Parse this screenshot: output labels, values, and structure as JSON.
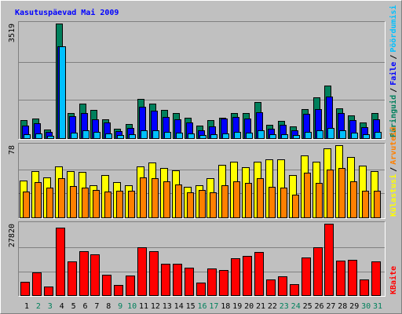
{
  "title": "Kasutuspäevad Mai 2009",
  "chart_data": [
    {
      "type": "bar",
      "ylim": [
        0,
        3519
      ],
      "yticks": [
        3519
      ],
      "legend_separator": "/",
      "series": [
        {
          "name": "Päringuid",
          "color": "#00805c",
          "values": [
            555,
            600,
            265,
            3519,
            770,
            1060,
            870,
            580,
            290,
            435,
            1205,
            1060,
            870,
            770,
            625,
            385,
            555,
            625,
            770,
            770,
            1110,
            410,
            530,
            360,
            890,
            1255,
            1615,
            915,
            700,
            480,
            770
          ]
        },
        {
          "name": "Faile",
          "color": "#0000ff",
          "values": [
            385,
            460,
            195,
            2820,
            675,
            770,
            580,
            480,
            215,
            315,
            965,
            845,
            650,
            580,
            480,
            240,
            360,
            600,
            650,
            600,
            795,
            290,
            410,
            240,
            745,
            890,
            1280,
            770,
            555,
            340,
            580
          ]
        },
        {
          "name": "Pöördumisi",
          "color": "#00c0ff",
          "values": [
            120,
            145,
            70,
            2830,
            170,
            240,
            190,
            145,
            95,
            120,
            240,
            240,
            190,
            170,
            145,
            95,
            120,
            145,
            190,
            170,
            240,
            120,
            120,
            95,
            190,
            240,
            315,
            240,
            170,
            120,
            190
          ]
        }
      ]
    },
    {
      "type": "bar",
      "ylim": [
        0,
        78
      ],
      "yticks": [
        78
      ],
      "legend_separator": "/",
      "series": [
        {
          "name": "Külastusi",
          "color": "#ffff00",
          "values": [
            40,
            50,
            43,
            55,
            50,
            49,
            35,
            46,
            38,
            35,
            55,
            59,
            53,
            51,
            33,
            35,
            42,
            57,
            60,
            54,
            60,
            63,
            63,
            46,
            67,
            60,
            75,
            78,
            65,
            56,
            50
          ]
        },
        {
          "name": "Arvuteid",
          "color": "#ff8000",
          "values": [
            28,
            38,
            32,
            42,
            34,
            32,
            30,
            28,
            29,
            29,
            43,
            42,
            39,
            36,
            27,
            30,
            27,
            35,
            39,
            37,
            42,
            33,
            32,
            25,
            48,
            37,
            52,
            53,
            39,
            29,
            29
          ]
        }
      ]
    },
    {
      "type": "bar",
      "ylim": [
        0,
        27820
      ],
      "yticks": [
        27820
      ],
      "categories": [
        "1",
        "2",
        "3",
        "4",
        "5",
        "6",
        "7",
        "8",
        "9",
        "10",
        "11",
        "12",
        "13",
        "14",
        "15",
        "16",
        "17",
        "18",
        "19",
        "20",
        "21",
        "22",
        "23",
        "24",
        "25",
        "26",
        "27",
        "28",
        "29",
        "30",
        "31"
      ],
      "category_colors": [
        "#000000",
        "#00805c",
        "#00805c",
        "#000000",
        "#000000",
        "#000000",
        "#000000",
        "#000000",
        "#00805c",
        "#00805c",
        "#000000",
        "#000000",
        "#000000",
        "#000000",
        "#000000",
        "#00805c",
        "#00805c",
        "#000000",
        "#000000",
        "#000000",
        "#000000",
        "#000000",
        "#00805c",
        "#00805c",
        "#000000",
        "#000000",
        "#000000",
        "#000000",
        "#000000",
        "#00805c",
        "#00805c"
      ],
      "series": [
        {
          "name": "KBaite",
          "color": "#ff0000",
          "values": [
            5300,
            8750,
            3440,
            26260,
            13130,
            17190,
            15940,
            7810,
            4060,
            7500,
            18760,
            17190,
            12190,
            12190,
            10630,
            5000,
            10320,
            9690,
            14380,
            15320,
            16880,
            6250,
            7190,
            4380,
            14690,
            18760,
            27820,
            13440,
            13750,
            6250,
            13130
          ]
        }
      ]
    }
  ]
}
